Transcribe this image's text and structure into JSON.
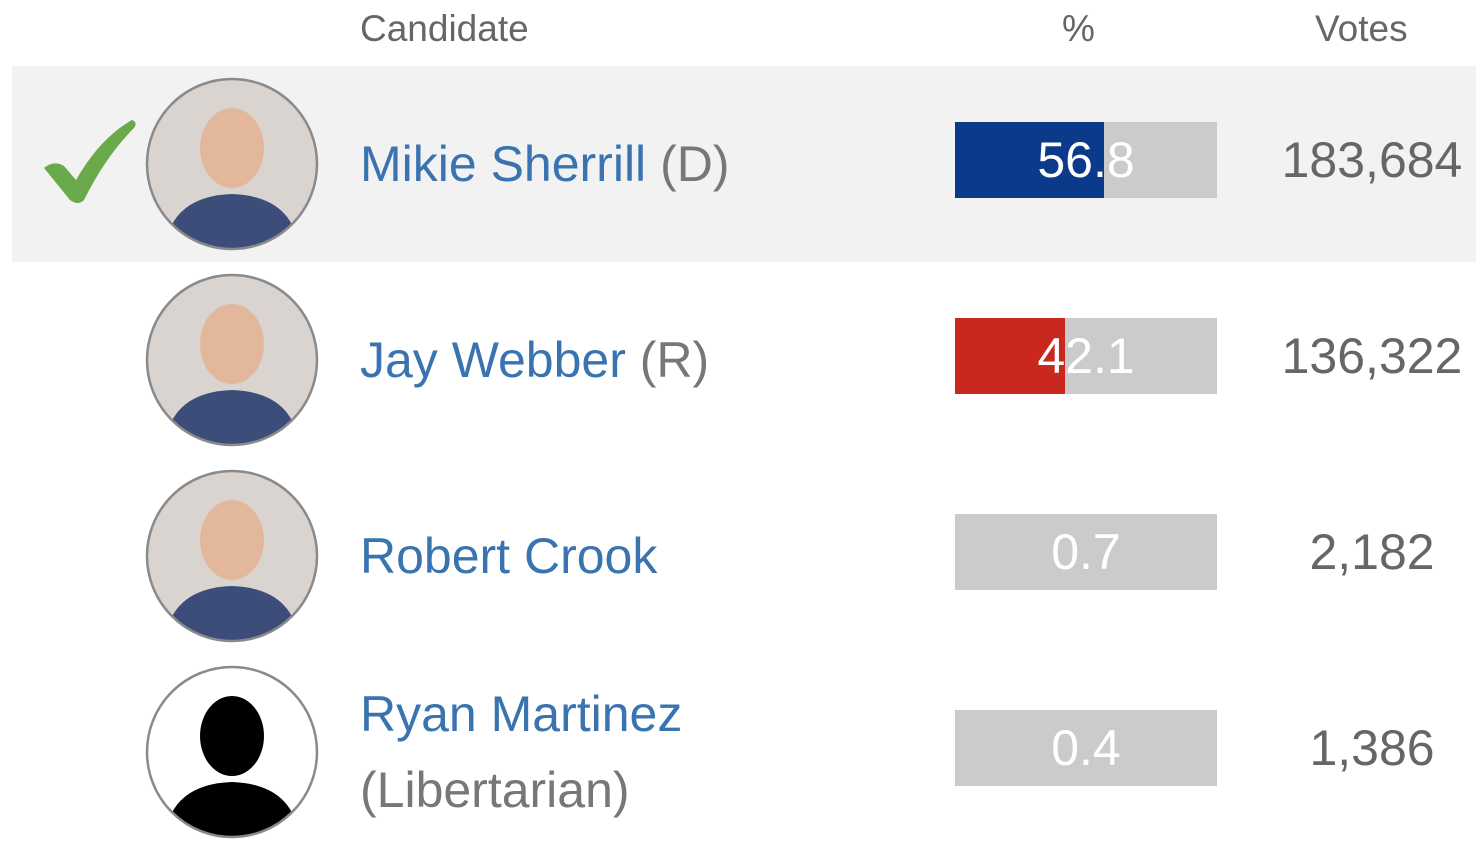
{
  "header": {
    "candidate": "Candidate",
    "percent": "%",
    "votes": "Votes"
  },
  "candidates": [
    {
      "name": "Mikie Sherrill",
      "party": "(D)",
      "percent": 56.8,
      "votes": "183,684",
      "color": "#0b3a8a",
      "winner": true
    },
    {
      "name": "Jay Webber",
      "party": "(R)",
      "percent": 42.1,
      "votes": "136,322",
      "color": "#c8281e"
    },
    {
      "name": "Robert Crook",
      "percent": 0.7,
      "votes": "2,182"
    },
    {
      "name": "Ryan Martinez",
      "party": "(Libertarian)",
      "percent": 0.4,
      "votes": "1,386"
    }
  ]
}
